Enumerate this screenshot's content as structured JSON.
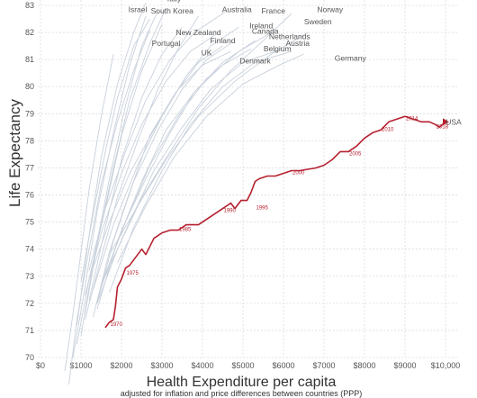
{
  "chart_data": {
    "type": "line",
    "title": "",
    "xlabel": "Health Expenditure per capita",
    "xlabel_sub": "adjusted for inflation and price differences between countries (PPP)",
    "ylabel": "Life Expectancy",
    "xlim": [
      0,
      10000
    ],
    "ylim": [
      70,
      83
    ],
    "x_ticks": [
      0,
      1000,
      2000,
      3000,
      4000,
      5000,
      6000,
      7000,
      8000,
      9000,
      10000
    ],
    "x_tick_labels": [
      "$0",
      "$1000",
      "$2000",
      "$3000",
      "$4000",
      "$5000",
      "$6000",
      "$7000",
      "$8000",
      "$9000",
      "$10,000"
    ],
    "y_ticks": [
      70,
      71,
      72,
      73,
      74,
      75,
      76,
      77,
      78,
      79,
      80,
      81,
      82,
      83
    ],
    "y_tick_labels": [
      "70",
      "71",
      "72",
      "73",
      "74",
      "75",
      "76",
      "77",
      "78",
      "79",
      "80",
      "81",
      "82",
      "83"
    ],
    "grid": true,
    "highlight_color": "#b5202e",
    "other_color": "#c9d1dc",
    "highlight_series": {
      "name": "USA",
      "x": [
        1600,
        1700,
        1800,
        1850,
        1900,
        2000,
        2100,
        2200,
        2300,
        2400,
        2500,
        2600,
        2700,
        2800,
        2900,
        3000,
        3200,
        3400,
        3600,
        3700,
        3900,
        4100,
        4300,
        4500,
        4700,
        4800,
        4950,
        5100,
        5200,
        5300,
        5400,
        5600,
        5800,
        6000,
        6200,
        6400,
        6800,
        7000,
        7200,
        7400,
        7600,
        7800,
        8000,
        8200,
        8400,
        8600,
        8800,
        9000,
        9200,
        9400,
        9600,
        9750,
        9850,
        10000
      ],
      "y": [
        71.1,
        71.3,
        71.4,
        71.9,
        72.6,
        72.9,
        73.3,
        73.4,
        73.6,
        73.8,
        74.0,
        73.8,
        74.1,
        74.4,
        74.5,
        74.6,
        74.7,
        74.7,
        74.9,
        74.9,
        74.9,
        75.1,
        75.3,
        75.5,
        75.7,
        75.5,
        75.8,
        75.8,
        76.1,
        76.5,
        76.6,
        76.7,
        76.7,
        76.8,
        76.9,
        76.9,
        77.0,
        77.1,
        77.3,
        77.6,
        77.6,
        77.8,
        78.1,
        78.3,
        78.4,
        78.7,
        78.8,
        78.9,
        78.8,
        78.7,
        78.7,
        78.6,
        78.5,
        78.7
      ],
      "year_labels": [
        {
          "year": "1970",
          "x": 1700,
          "y": 71.3
        },
        {
          "year": "1975",
          "x": 2100,
          "y": 73.2
        },
        {
          "year": "1985",
          "x": 3400,
          "y": 74.8
        },
        {
          "year": "1990",
          "x": 4500,
          "y": 75.5
        },
        {
          "year": "1995",
          "x": 5300,
          "y": 75.6
        },
        {
          "year": "2000",
          "x": 6200,
          "y": 76.9
        },
        {
          "year": "2005",
          "x": 7600,
          "y": 77.6
        },
        {
          "year": "2010",
          "x": 8400,
          "y": 78.5
        },
        {
          "year": "2014",
          "x": 9000,
          "y": 78.9
        },
        {
          "year": "2018",
          "x": 9750,
          "y": 78.6
        }
      ]
    },
    "series": [
      {
        "x": [
          1000,
          1300,
          1700,
          2100,
          2500,
          2900
        ],
        "y": [
          70.8,
          73.5,
          76.6,
          79.3,
          81.5,
          82.8
        ]
      },
      {
        "x": [
          1100,
          1400,
          1800,
          2200,
          2700,
          3100
        ],
        "y": [
          71.6,
          74.2,
          77.0,
          79.5,
          81.6,
          82.9
        ]
      },
      {
        "x": [
          900,
          1200,
          1500,
          1900,
          2300,
          2600
        ],
        "y": [
          71.2,
          74.5,
          77.4,
          80.1,
          82.0,
          83.1
        ]
      },
      {
        "x": [
          1200,
          1600,
          2000,
          2500,
          3000,
          3500
        ],
        "y": [
          72.1,
          74.8,
          77.3,
          79.6,
          81.2,
          82.2
        ]
      },
      {
        "x": [
          1000,
          1300,
          1600,
          1900,
          2300,
          2700
        ],
        "y": [
          72.8,
          75.3,
          77.6,
          79.6,
          81.5,
          82.5
        ]
      },
      {
        "x": [
          1300,
          1700,
          2200,
          2700,
          3300,
          3900,
          4500
        ],
        "y": [
          71.5,
          73.9,
          76.1,
          78.2,
          79.7,
          80.9,
          81.5
        ]
      },
      {
        "x": [
          1400,
          1800,
          2300,
          2900,
          3500,
          4100,
          4700
        ],
        "y": [
          72.0,
          74.3,
          76.5,
          78.4,
          79.9,
          81.0,
          81.6
        ]
      },
      {
        "x": [
          1100,
          1500,
          2000,
          2500,
          3100,
          3700,
          4300
        ],
        "y": [
          72.3,
          74.6,
          76.8,
          78.6,
          80.2,
          81.3,
          81.9
        ]
      },
      {
        "x": [
          1500,
          2000,
          2600,
          3200,
          3800,
          4500,
          5200
        ],
        "y": [
          72.6,
          74.7,
          76.6,
          78.3,
          79.8,
          80.8,
          81.4
        ]
      },
      {
        "x": [
          1600,
          2200,
          2800,
          3500,
          4200,
          5000,
          5800
        ],
        "y": [
          73.0,
          75.0,
          76.9,
          78.5,
          79.9,
          80.9,
          81.3
        ]
      },
      {
        "x": [
          1700,
          2300,
          3000,
          3700,
          4500,
          5300,
          6200
        ],
        "y": [
          72.4,
          74.8,
          76.9,
          78.6,
          80.0,
          80.9,
          81.3
        ]
      },
      {
        "x": [
          1400,
          1900,
          2500,
          3100,
          3800,
          4500,
          5300
        ],
        "y": [
          71.8,
          74.3,
          76.5,
          78.4,
          79.8,
          80.9,
          81.7
        ]
      },
      {
        "x": [
          1900,
          2600,
          3300,
          4100,
          5000,
          5900,
          6500
        ],
        "y": [
          73.5,
          75.6,
          77.4,
          78.9,
          80.1,
          80.8,
          81.2
        ]
      },
      {
        "x": [
          1200,
          1700,
          2200,
          2800,
          3400,
          4000,
          4700
        ],
        "y": [
          72.9,
          75.0,
          76.8,
          78.4,
          79.9,
          80.8,
          81.3
        ]
      },
      {
        "x": [
          900,
          1200,
          1600,
          2000,
          2500,
          3000
        ],
        "y": [
          70.5,
          72.9,
          75.5,
          78.2,
          80.6,
          82.3
        ]
      },
      {
        "x": [
          800,
          1100,
          1400,
          1800,
          2200,
          2600
        ],
        "y": [
          70.0,
          72.6,
          75.4,
          78.3,
          80.8,
          82.6
        ]
      },
      {
        "x": [
          1500,
          2100,
          2700,
          3400,
          4100,
          4900,
          5700
        ],
        "y": [
          72.7,
          75.0,
          77.1,
          78.9,
          80.3,
          81.3,
          82.0
        ]
      },
      {
        "x": [
          1300,
          1800,
          2400,
          3000,
          3600,
          4200,
          4900
        ],
        "y": [
          72.5,
          74.9,
          77.1,
          78.9,
          80.4,
          81.5,
          82.2
        ]
      },
      {
        "x": [
          1700,
          2400,
          3100,
          3900,
          4800,
          5700,
          6600
        ],
        "y": [
          73.8,
          75.6,
          77.3,
          78.9,
          80.2,
          81.2,
          82.0
        ]
      },
      {
        "x": [
          1200,
          1600,
          2100,
          2600,
          3200,
          3800,
          4600
        ],
        "y": [
          73.2,
          75.5,
          77.6,
          79.5,
          81.0,
          82.0,
          82.8
        ]
      },
      {
        "x": [
          1400,
          1900,
          2500,
          3200,
          3900,
          4700,
          5500,
          6200
        ],
        "y": [
          72.0,
          74.0,
          75.9,
          77.6,
          79.2,
          80.6,
          81.7,
          82.7
        ]
      },
      {
        "x": [
          1100,
          1500,
          1900,
          2400,
          2900,
          3400,
          3900
        ],
        "y": [
          71.4,
          73.7,
          75.9,
          78.0,
          79.9,
          81.4,
          82.6
        ]
      },
      {
        "x": [
          600,
          800,
          1000,
          1200,
          1500,
          1800
        ],
        "y": [
          69.5,
          71.6,
          73.9,
          76.2,
          78.9,
          81.2
        ]
      },
      {
        "x": [
          700,
          900,
          1200,
          1500,
          1900,
          2300,
          2700
        ],
        "y": [
          69.0,
          71.4,
          74.0,
          76.4,
          78.7,
          80.6,
          82.1
        ]
      }
    ],
    "annotations": [
      {
        "text": "Italy",
        "x": 3300,
        "y": 83.15
      },
      {
        "text": "Israel",
        "x": 2400,
        "y": 82.75
      },
      {
        "text": "South Korea",
        "x": 3250,
        "y": 82.7
      },
      {
        "text": "Australia",
        "x": 4850,
        "y": 82.75
      },
      {
        "text": "France",
        "x": 5750,
        "y": 82.7
      },
      {
        "text": "Norway",
        "x": 7150,
        "y": 82.75
      },
      {
        "text": "Sweden",
        "x": 6850,
        "y": 82.3
      },
      {
        "text": "Ireland",
        "x": 5450,
        "y": 82.15
      },
      {
        "text": "New Zealand",
        "x": 3900,
        "y": 81.9
      },
      {
        "text": "Canada",
        "x": 5550,
        "y": 81.95
      },
      {
        "text": "Netherlands",
        "x": 6150,
        "y": 81.75
      },
      {
        "text": "Finland",
        "x": 4500,
        "y": 81.6
      },
      {
        "text": "Portugal",
        "x": 3100,
        "y": 81.5
      },
      {
        "text": "Austria",
        "x": 6350,
        "y": 81.5
      },
      {
        "text": "Belgium",
        "x": 5850,
        "y": 81.3
      },
      {
        "text": "UK",
        "x": 4100,
        "y": 81.15
      },
      {
        "text": "Germany",
        "x": 7650,
        "y": 80.95
      },
      {
        "text": "Denmark",
        "x": 5300,
        "y": 80.85
      },
      {
        "text": "USA",
        "x": 10200,
        "y": 78.6
      }
    ]
  }
}
